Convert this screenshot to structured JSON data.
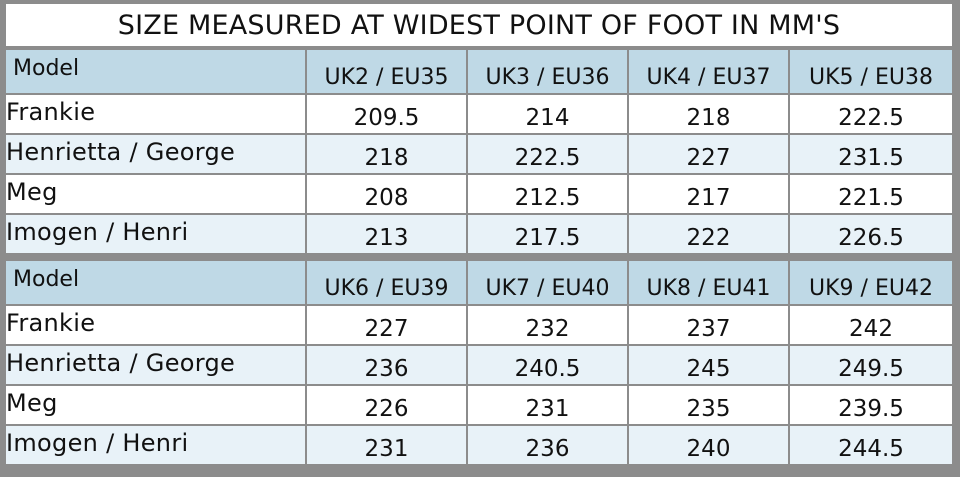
{
  "chart_data": {
    "type": "table",
    "title": "SIZE MEASURED AT WIDEST POINT OF FOOT IN MM'S",
    "tables": [
      {
        "columns": [
          "Model",
          "UK2 / EU35",
          "UK3 / EU36",
          "UK4 / EU37",
          "UK5 / EU38"
        ],
        "rows": [
          {
            "model": "Frankie",
            "values": [
              "209.5",
              "214",
              "218",
              "222.5"
            ]
          },
          {
            "model": "Henrietta / George",
            "values": [
              "218",
              "222.5",
              "227",
              "231.5"
            ]
          },
          {
            "model": "Meg",
            "values": [
              "208",
              "212.5",
              "217",
              "221.5"
            ]
          },
          {
            "model": "Imogen / Henri",
            "values": [
              "213",
              "217.5",
              "222",
              "226.5"
            ]
          }
        ]
      },
      {
        "columns": [
          "Model",
          "UK6 / EU39",
          "UK7 / EU40",
          "UK8 / EU41",
          "UK9 / EU42"
        ],
        "rows": [
          {
            "model": "Frankie",
            "values": [
              "227",
              "232",
              "237",
              "242"
            ]
          },
          {
            "model": "Henrietta / George",
            "values": [
              "236",
              "240.5",
              "245",
              "249.5"
            ]
          },
          {
            "model": "Meg",
            "values": [
              "226",
              "231",
              "235",
              "239.5"
            ]
          },
          {
            "model": "Imogen / Henri",
            "values": [
              "231",
              "236",
              "240",
              "244.5"
            ]
          }
        ]
      }
    ],
    "colors": {
      "header_bg": "#bfd9e6",
      "row_alt_bg": "#e8f2f8",
      "row_bg": "#ffffff",
      "border": "#8c8c8c"
    }
  }
}
